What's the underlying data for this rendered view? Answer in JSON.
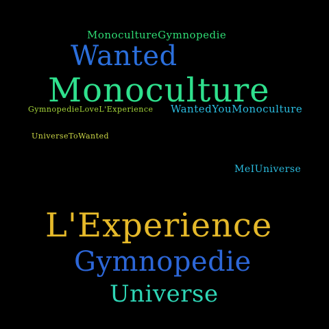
{
  "background_color": "#000000",
  "words": [
    {
      "text": "MonocultureGymnopedie",
      "color": "#2fdc74"
    },
    {
      "text": "Wanted",
      "color": "#2b6fdc"
    },
    {
      "text": "Monoculture",
      "color": "#2fe08d"
    },
    {
      "text": "GymnopedieLoveL'Experience",
      "color": "#a6d63a"
    },
    {
      "text": "WantedYouMonoculture",
      "color": "#2bbde0"
    },
    {
      "text": "UniverseToWanted",
      "color": "#cbd646"
    },
    {
      "text": "MeIUniverse",
      "color": "#2bbde0"
    },
    {
      "text": "L'Experience",
      "color": "#e5b92a"
    },
    {
      "text": "Gymnopedie",
      "color": "#2d67d8"
    },
    {
      "text": "Universe",
      "color": "#2fd6b6"
    }
  ]
}
